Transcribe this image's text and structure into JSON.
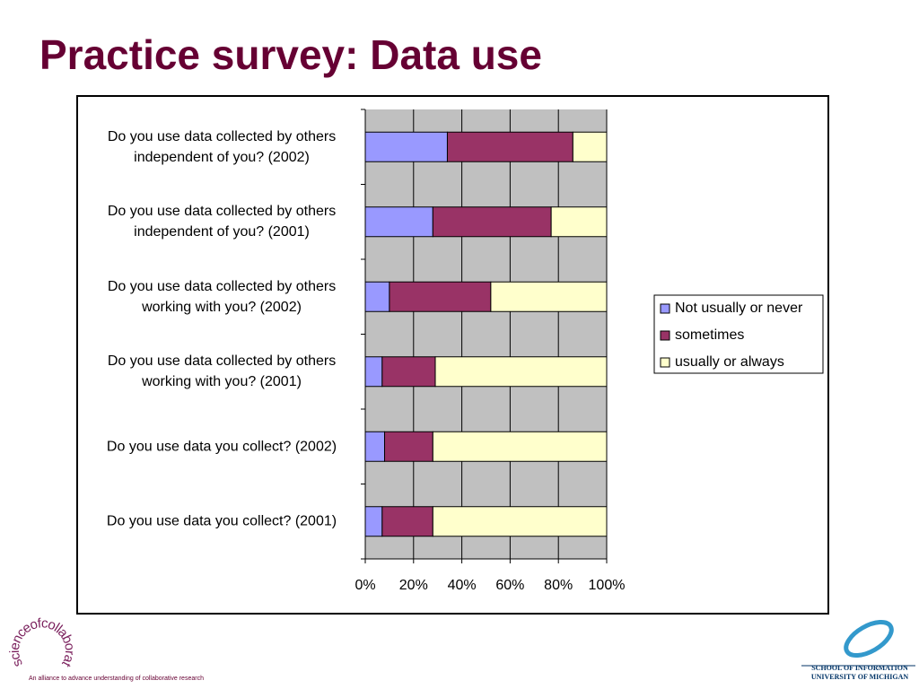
{
  "chart_data": {
    "type": "bar",
    "orientation": "horizontal",
    "stacked": true,
    "title": "Practice survey: Data use",
    "categories": [
      "Do you use data collected by others independent of you? (2002)",
      "Do you use data collected by others independent of you? (2001)",
      "Do you use data collected by others working with you? (2002)",
      "Do you use data collected by others working with you? (2001)",
      "Do you use data you collect? (2002)",
      "Do you use data you collect? (2001)"
    ],
    "series": [
      {
        "name": "Not usually or never",
        "color": "#9999ff",
        "values": [
          34,
          28,
          10,
          7,
          8,
          7
        ]
      },
      {
        "name": "sometimes",
        "color": "#993366",
        "values": [
          52,
          49,
          42,
          22,
          20,
          21
        ]
      },
      {
        "name": "usually or always",
        "color": "#ffffcc",
        "values": [
          14,
          23,
          48,
          71,
          72,
          72
        ]
      }
    ],
    "xlim": [
      0,
      100
    ],
    "xticks": [
      {
        "value": 0,
        "label": "0%"
      },
      {
        "value": 20,
        "label": "20%"
      },
      {
        "value": 40,
        "label": "40%"
      },
      {
        "value": 60,
        "label": "60%"
      },
      {
        "value": 80,
        "label": "80%"
      },
      {
        "value": 100,
        "label": "100%"
      }
    ],
    "grid": true,
    "plot_background": "#c0c0c0",
    "legend": "right"
  },
  "footer": {
    "logo": "scienceofcollaboratories",
    "alliance": "An alliance to advance understanding of collaborative research",
    "school": "SCHOOL OF INFORMATION",
    "university": "UNIVERSITY OF MICHIGAN"
  }
}
